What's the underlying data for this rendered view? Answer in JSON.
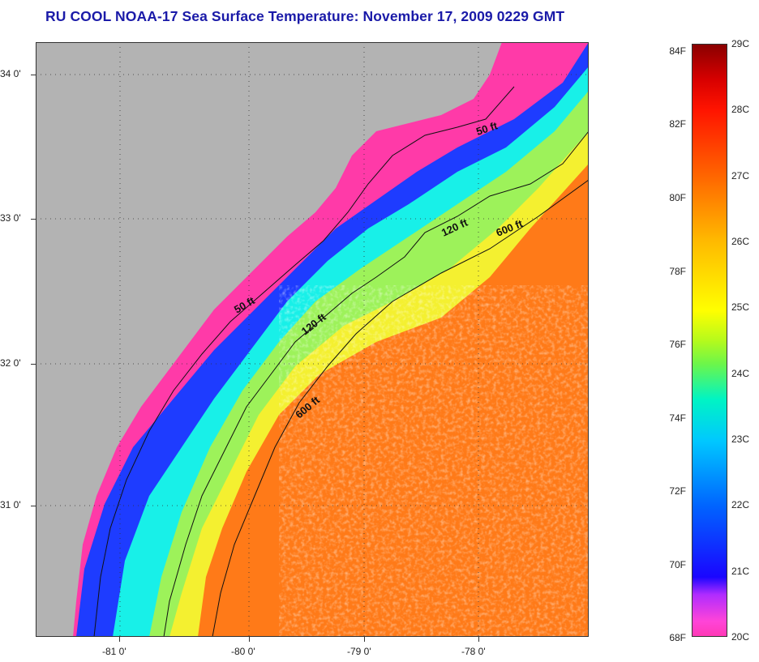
{
  "title": "RU COOL  NOAA-17  Sea Surface Temperature:  November 17, 2009 0229 GMT",
  "map": {
    "longitudes": [
      "-81 0'",
      "-80 0'",
      "-79 0'",
      "-78 0'"
    ],
    "latitudes": [
      "34 0'",
      "33 0'",
      "32 0'",
      "31 0'"
    ],
    "contour_labels": [
      {
        "text": "50 ft",
        "id": "contour-label-50ft-north"
      },
      {
        "text": "50 ft",
        "id": "contour-label-50ft-south"
      },
      {
        "text": "120 ft",
        "id": "contour-label-120ft-north"
      },
      {
        "text": "120 ft",
        "id": "contour-label-120ft-south"
      },
      {
        "text": "600 ft",
        "id": "contour-label-600ft-north"
      },
      {
        "text": "600 ft",
        "id": "contour-label-600ft-south"
      }
    ]
  },
  "colorbar": {
    "fahrenheit": [
      "84F",
      "82F",
      "80F",
      "78F",
      "76F",
      "74F",
      "72F",
      "70F",
      "68F"
    ],
    "celsius": [
      "29C",
      "28C",
      "27C",
      "26C",
      "25C",
      "24C",
      "23C",
      "22C",
      "21C",
      "20C"
    ],
    "colors": {
      "min": "#ff39b6",
      "mid": "#ffff00",
      "max": "#8a0000",
      "land": "#b3b3b3"
    }
  }
}
